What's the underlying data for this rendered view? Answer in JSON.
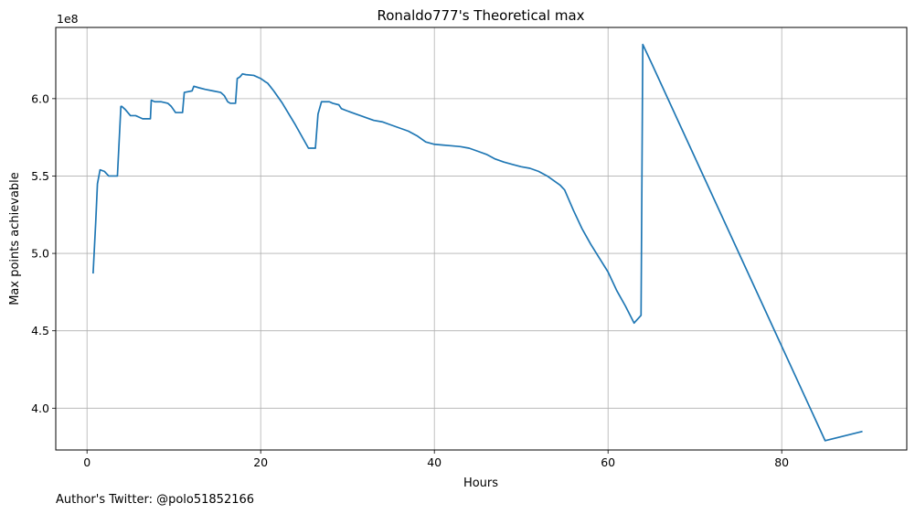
{
  "chart_data": {
    "type": "line",
    "title": "Ronaldo777's Theoretical max",
    "xlabel": "Hours",
    "ylabel": "Max points achievable",
    "y_offset_label": "1e8",
    "xlim": [
      -3.6,
      94.4
    ],
    "ylim": [
      3.73,
      6.46
    ],
    "grid": true,
    "x_ticks": [
      0,
      20,
      40,
      60,
      80
    ],
    "x_tick_labels": [
      "0",
      "20",
      "40",
      "60",
      "80"
    ],
    "y_ticks": [
      4.0,
      4.5,
      5.0,
      5.5,
      6.0
    ],
    "y_tick_labels": [
      "4.0",
      "4.5",
      "5.0",
      "5.5",
      "6.0"
    ],
    "series": [
      {
        "color": "#1f77b4",
        "x": [
          0.7,
          1.0,
          1.2,
          1.5,
          2.0,
          2.5,
          3.0,
          3.5,
          3.9,
          4.0,
          4.4,
          5.0,
          5.6,
          6.0,
          6.4,
          7.3,
          7.4,
          7.8,
          8.5,
          9.3,
          9.7,
          10.2,
          10.4,
          11.0,
          11.2,
          12.1,
          12.3,
          12.9,
          13.6,
          14.5,
          15.4,
          15.8,
          16.2,
          16.5,
          17.1,
          17.3,
          17.6,
          17.9,
          18.3,
          19.2,
          20.0,
          20.5,
          20.8,
          21.5,
          22.5,
          24.0,
          25.5,
          26.3,
          26.6,
          27.0,
          27.9,
          28.3,
          29.0,
          29.3,
          30.0,
          31.0,
          32.0,
          33.0,
          34.0,
          35.0,
          36.0,
          37.0,
          38.0,
          39.0,
          40.0,
          41.0,
          42.0,
          43.0,
          44.0,
          45.0,
          46.0,
          47.0,
          48.0,
          49.0,
          50.0,
          51.0,
          52.0,
          53.0,
          54.0,
          54.5,
          55.0,
          56.0,
          57.0,
          58.0,
          59.0,
          60.0,
          61.0,
          62.0,
          63.0,
          63.8,
          64.0,
          65.0,
          70.0,
          75.0,
          80.0,
          85.0,
          89.3
        ],
        "values": [
          4.87,
          5.2,
          5.45,
          5.54,
          5.53,
          5.5,
          5.5,
          5.5,
          5.95,
          5.95,
          5.93,
          5.89,
          5.89,
          5.88,
          5.87,
          5.87,
          5.99,
          5.98,
          5.98,
          5.97,
          5.95,
          5.91,
          5.91,
          5.91,
          6.04,
          6.05,
          6.08,
          6.07,
          6.06,
          6.05,
          6.04,
          6.02,
          5.98,
          5.97,
          5.97,
          6.13,
          6.14,
          6.16,
          6.155,
          6.15,
          6.13,
          6.11,
          6.1,
          6.05,
          5.97,
          5.83,
          5.68,
          5.68,
          5.9,
          5.98,
          5.98,
          5.97,
          5.96,
          5.935,
          5.92,
          5.9,
          5.88,
          5.86,
          5.85,
          5.83,
          5.81,
          5.79,
          5.76,
          5.72,
          5.705,
          5.7,
          5.695,
          5.69,
          5.68,
          5.66,
          5.64,
          5.61,
          5.59,
          5.575,
          5.56,
          5.55,
          5.53,
          5.5,
          5.46,
          5.44,
          5.41,
          5.28,
          5.16,
          5.06,
          4.97,
          4.88,
          4.76,
          4.66,
          4.55,
          4.6,
          6.35,
          6.23,
          5.62,
          5.01,
          4.4,
          3.79,
          3.85
        ]
      }
    ]
  },
  "footer_text": "Author's Twitter: @polo51852166"
}
